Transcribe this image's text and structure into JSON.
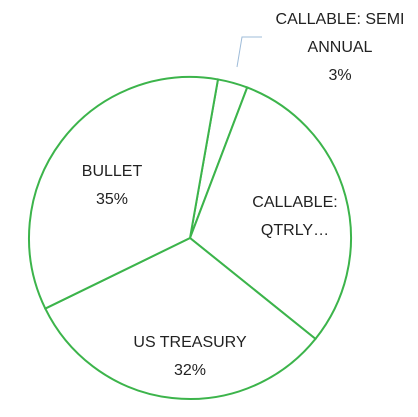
{
  "chart_data": {
    "type": "pie",
    "categories": [
      "CALLABLE: SEMI ANNUAL",
      "CALLABLE: QTRLY…",
      "US TREASURY",
      "BULLET"
    ],
    "values": [
      3,
      30,
      32,
      35
    ],
    "value_labels": [
      "3%",
      null,
      "32%",
      "35%"
    ],
    "color": "#3cb44b"
  }
}
